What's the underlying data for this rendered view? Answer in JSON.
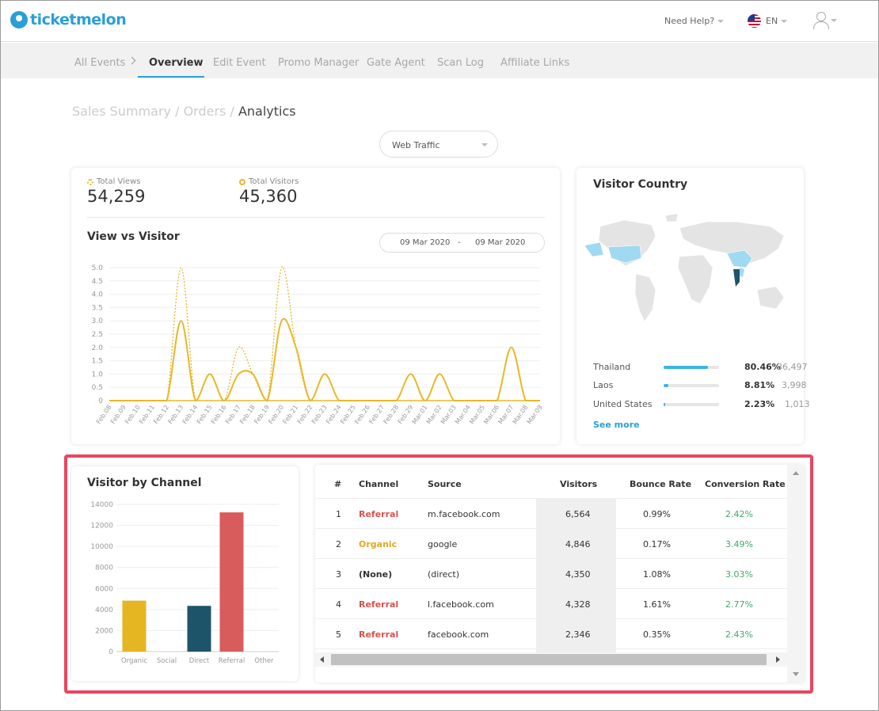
{
  "header": {
    "logo_text": "ticketmelon",
    "help_label": "Need Help?",
    "lang_label": "EN"
  },
  "nav": {
    "items": [
      {
        "label": "All Events"
      },
      {
        "label": "Overview"
      },
      {
        "label": "Edit Event"
      },
      {
        "label": "Promo Manager"
      },
      {
        "label": "Gate Agent"
      },
      {
        "label": "Scan Log"
      },
      {
        "label": "Affiliate Links"
      }
    ],
    "active": "Overview"
  },
  "breadcrumb": {
    "items": [
      "Sales Summary",
      "Orders",
      "Analytics"
    ],
    "separator": "/"
  },
  "filter": {
    "selected": "Web Traffic"
  },
  "stats": {
    "total_views_label": "Total Views",
    "total_views": "54,259",
    "total_visitors_label": "Total Visitors",
    "total_visitors": "45,360"
  },
  "line_card": {
    "title": "View vs Visitor",
    "date_from": "09 Mar 2020",
    "date_sep": "-",
    "date_to": "09 Mar 2020"
  },
  "country_card": {
    "title": "Visitor Country",
    "rows": [
      {
        "name": "Thailand",
        "pct": "80.46%",
        "count": "36,497",
        "fill": 0.8046
      },
      {
        "name": "Laos",
        "pct": "8.81%",
        "count": "3,998",
        "fill": 0.0881
      },
      {
        "name": "United States",
        "pct": "2.23%",
        "count": "1,013",
        "fill": 0.0223
      }
    ],
    "see_more": "See more",
    "bar_color": "#3bb5e0"
  },
  "channel_card": {
    "title": "Visitor by Channel"
  },
  "table": {
    "headers": [
      "#",
      "Channel",
      "Source",
      "Visitors",
      "Bounce Rate",
      "Conversion Rate"
    ],
    "rows": [
      {
        "n": "1",
        "channel": "Referral",
        "source": "m.facebook.com",
        "visitors": "6,564",
        "bounce": "0.99%",
        "conv": "2.42%"
      },
      {
        "n": "2",
        "channel": "Organic",
        "source": "google",
        "visitors": "4,846",
        "bounce": "0.17%",
        "conv": "3.49%"
      },
      {
        "n": "3",
        "channel": "(None)",
        "source": "(direct)",
        "visitors": "4,350",
        "bounce": "1.08%",
        "conv": "3.03%"
      },
      {
        "n": "4",
        "channel": "Referral",
        "source": "l.facebook.com",
        "visitors": "4,328",
        "bounce": "1.61%",
        "conv": "2.77%"
      },
      {
        "n": "5",
        "channel": "Referral",
        "source": "facebook.com",
        "visitors": "2,346",
        "bounce": "0.35%",
        "conv": "2.43%"
      }
    ]
  },
  "colors": {
    "accent": "#2a9fd6",
    "line": "#e8b829",
    "highlight": "#e9455f"
  },
  "chart_data": [
    {
      "type": "line",
      "categories": [
        "Feb.08",
        "Feb.09",
        "Feb.10",
        "Feb.11",
        "Feb.12",
        "Feb.13",
        "Feb.14",
        "Feb.15",
        "Feb.16",
        "Feb.17",
        "Feb.18",
        "Feb.19",
        "Feb.20",
        "Feb.21",
        "Feb.22",
        "Feb.23",
        "Feb.24",
        "Feb.25",
        "Feb.26",
        "Feb.27",
        "Feb.28",
        "Feb.29",
        "Mar.01",
        "Mar.02",
        "Mar.03",
        "Mar.04",
        "Mar.05",
        "Mar.06",
        "Mar.07",
        "Mar.08",
        "Mar.09"
      ],
      "series": [
        {
          "values": [
            0,
            0,
            0,
            0,
            0,
            5,
            0,
            1,
            0,
            2,
            1,
            0,
            5,
            2,
            0,
            1,
            0,
            0,
            0,
            0,
            0,
            1,
            0,
            1,
            0,
            0,
            0,
            0,
            2,
            0,
            0
          ],
          "style": "dashed"
        },
        {
          "values": [
            0,
            0,
            0,
            0,
            0,
            3,
            0,
            1,
            0,
            1,
            1,
            0,
            3,
            2,
            0,
            1,
            0,
            0,
            0,
            0,
            0,
            1,
            0,
            1,
            0,
            0,
            0,
            0,
            2,
            0,
            0
          ],
          "style": "solid"
        }
      ],
      "yticks": [
        "0",
        "0.5",
        "1.0",
        "1.5",
        "2.0",
        "2.5",
        "3.0",
        "3.5",
        "4.0",
        "4.5",
        "5.0"
      ],
      "ylim": [
        0,
        5
      ],
      "grid": true
    },
    {
      "type": "bar",
      "categories": [
        "Organic",
        "Social",
        "Direct",
        "Referral",
        "Other"
      ],
      "values": [
        4846,
        0,
        4350,
        13238,
        0
      ],
      "colors": [
        "#e6b522",
        "#cccccc",
        "#1e5469",
        "#d95c5c",
        "#cccccc"
      ],
      "yticks": [
        "0",
        "2000",
        "4000",
        "6000",
        "8000",
        "10000",
        "12000",
        "14000"
      ],
      "ylim": [
        0,
        14000
      ],
      "grid": true
    }
  ]
}
